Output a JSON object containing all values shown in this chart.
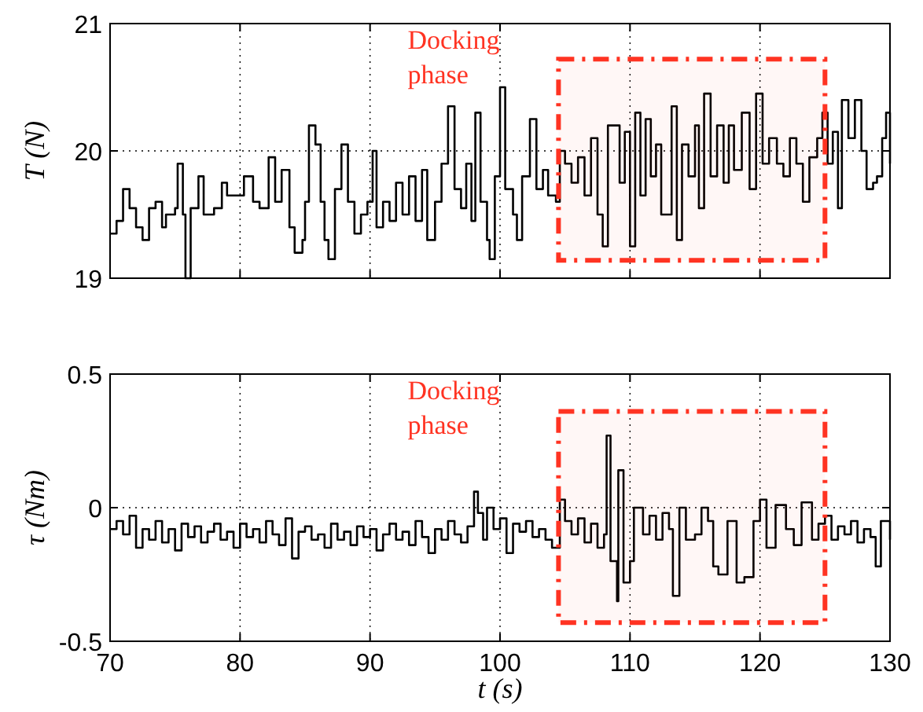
{
  "chart_data": [
    {
      "type": "step",
      "ylabel": "T (N)",
      "xlim": [
        70,
        130
      ],
      "xticks": [
        70,
        80,
        90,
        100,
        110,
        120,
        130
      ],
      "ylim": [
        19,
        21
      ],
      "yticks": [
        19,
        20,
        21
      ],
      "grid": true,
      "tick_labels": "y",
      "bands": [
        {
          "axis": "x",
          "from": 104.5,
          "to": 125,
          "label": "Docking phase",
          "color": "#ff3322"
        }
      ],
      "series": [
        {
          "color": "#000000",
          "x": [
            70,
            70.5,
            71,
            71.5,
            72,
            72.5,
            73,
            73.5,
            74,
            74.3,
            75,
            75.2,
            75.6,
            75.8,
            76.2,
            76.8,
            77.2,
            78,
            78.6,
            79,
            80,
            80.3,
            81,
            81.5,
            82.2,
            82.7,
            83.2,
            83.8,
            84.2,
            84.8,
            85,
            85.3,
            85.8,
            86.2,
            86.5,
            86.8,
            87.3,
            87.8,
            88.3,
            88.8,
            89.3,
            89.8,
            90.2,
            90.5,
            91,
            91.5,
            92,
            92.5,
            93,
            93.5,
            94,
            94.4,
            95,
            95.5,
            96,
            96.5,
            97,
            97.4,
            97.8,
            98.1,
            98.5,
            99,
            99.2,
            99.6,
            100,
            100.4,
            101,
            101.3,
            101.7,
            102.3,
            102.8,
            103.3,
            103.7,
            104.3,
            104.6,
            105,
            105.5,
            106,
            106.5,
            107,
            107.5,
            107.9,
            108.3,
            108.8,
            109.2,
            109.6,
            110,
            110.4,
            110.8,
            111.2,
            111.6,
            112,
            112.4,
            112.9,
            113.2,
            113.6,
            114,
            114.5,
            115,
            115.3,
            115.7,
            116.2,
            116.7,
            117.2,
            117.6,
            118,
            118.6,
            119.2,
            119.7,
            120.2,
            120.7,
            121.3,
            121.8,
            122.3,
            122.8,
            123.3,
            123.8,
            124.4,
            124.8,
            125.2,
            125.6,
            126,
            126.3,
            126.8,
            127.3,
            127.8,
            128.2,
            128.7,
            129,
            129.4,
            129.7,
            130
          ],
          "values": [
            19.35,
            19.45,
            19.7,
            19.55,
            19.4,
            19.3,
            19.55,
            19.6,
            19.4,
            19.5,
            19.55,
            19.9,
            19.5,
            19.0,
            19.55,
            19.8,
            19.5,
            19.55,
            19.75,
            19.65,
            19.65,
            19.8,
            19.6,
            19.55,
            19.95,
            19.6,
            19.85,
            19.4,
            19.2,
            19.3,
            19.6,
            20.2,
            20.05,
            19.6,
            19.3,
            19.15,
            19.7,
            20.05,
            19.6,
            19.35,
            19.5,
            19.6,
            20.0,
            19.4,
            19.6,
            19.45,
            19.75,
            19.5,
            19.8,
            19.45,
            19.85,
            19.3,
            19.6,
            19.9,
            20.35,
            19.7,
            19.55,
            19.9,
            19.45,
            20.3,
            19.6,
            19.3,
            19.15,
            19.8,
            20.5,
            19.7,
            19.5,
            19.3,
            19.8,
            20.25,
            19.7,
            19.85,
            19.65,
            19.6,
            20.0,
            19.9,
            19.75,
            19.95,
            19.65,
            20.1,
            19.5,
            19.25,
            20.2,
            20.2,
            19.75,
            20.15,
            19.25,
            20.3,
            19.65,
            20.25,
            19.8,
            20.05,
            19.5,
            19.5,
            20.35,
            19.3,
            20.05,
            19.8,
            20.2,
            19.55,
            20.45,
            19.8,
            20.2,
            19.75,
            20.2,
            19.85,
            20.3,
            19.7,
            20.45,
            19.9,
            20.1,
            19.9,
            19.8,
            20.1,
            19.9,
            19.6,
            19.95,
            20.1,
            20.3,
            19.9,
            20.15,
            19.55,
            20.4,
            20.1,
            20.4,
            20.0,
            19.7,
            19.75,
            19.8,
            20.1,
            20.3,
            19.9
          ]
        }
      ]
    },
    {
      "type": "step",
      "ylabel": "τ (Nm)",
      "xlabel": "t (s)",
      "xlim": [
        70,
        130
      ],
      "xticks": [
        70,
        80,
        90,
        100,
        110,
        120,
        130
      ],
      "ylim": [
        -0.5,
        0.5
      ],
      "yticks": [
        -0.5,
        0,
        0.5
      ],
      "grid": true,
      "bands": [
        {
          "axis": "x",
          "from": 104.5,
          "to": 125,
          "label": "Docking phase",
          "color": "#ff3322"
        }
      ],
      "series": [
        {
          "color": "#000000",
          "x": [
            70,
            70.5,
            71,
            71.5,
            72,
            72.5,
            73,
            73.5,
            74,
            74.5,
            75,
            75.5,
            76,
            76.5,
            77,
            77.5,
            78,
            78.5,
            79,
            79.5,
            80,
            80.5,
            81,
            81.5,
            82,
            82.5,
            83,
            83.5,
            84,
            84.5,
            85,
            85.5,
            86,
            86.5,
            87,
            87.5,
            88,
            88.5,
            89,
            89.5,
            90,
            90.5,
            91,
            91.5,
            92,
            92.5,
            93,
            93.5,
            94,
            94.5,
            95,
            95.5,
            96,
            96.5,
            97,
            97.5,
            98,
            98.3,
            98.7,
            99,
            99.5,
            100,
            100.5,
            101,
            101.5,
            102,
            102.5,
            103,
            103.5,
            104,
            104.6,
            105,
            105.5,
            106,
            106.5,
            107,
            107.5,
            108,
            108.2,
            108.5,
            109,
            109.1,
            109.5,
            110,
            110.3,
            111,
            111.5,
            112,
            112.5,
            113,
            113.3,
            113.8,
            114.3,
            115,
            115.5,
            116,
            116.4,
            116.8,
            117.5,
            118.2,
            118.8,
            119.5,
            120,
            120.5,
            121.2,
            122,
            122.6,
            123.2,
            124,
            124.5,
            125,
            125.5,
            126,
            126.5,
            127,
            127.5,
            128,
            128.5,
            128.9,
            129.3,
            130
          ],
          "values": [
            -0.08,
            -0.05,
            -0.1,
            -0.03,
            -0.15,
            -0.08,
            -0.12,
            -0.05,
            -0.13,
            -0.08,
            -0.16,
            -0.06,
            -0.11,
            -0.07,
            -0.13,
            -0.09,
            -0.06,
            -0.12,
            -0.09,
            -0.15,
            -0.06,
            -0.11,
            -0.08,
            -0.13,
            -0.05,
            -0.1,
            -0.14,
            -0.04,
            -0.19,
            -0.09,
            -0.07,
            -0.12,
            -0.1,
            -0.15,
            -0.06,
            -0.12,
            -0.09,
            -0.14,
            -0.07,
            -0.11,
            -0.08,
            -0.16,
            -0.1,
            -0.06,
            -0.12,
            -0.09,
            -0.14,
            -0.05,
            -0.11,
            -0.17,
            -0.08,
            -0.12,
            -0.05,
            -0.1,
            -0.13,
            -0.07,
            0.06,
            -0.02,
            -0.12,
            0.0,
            -0.08,
            -0.04,
            -0.17,
            -0.06,
            -0.09,
            -0.05,
            -0.11,
            -0.08,
            -0.12,
            -0.15,
            0.03,
            -0.05,
            -0.1,
            -0.04,
            -0.13,
            -0.06,
            -0.15,
            -0.1,
            0.27,
            -0.2,
            -0.35,
            0.14,
            -0.28,
            -0.2,
            0.0,
            -0.1,
            -0.03,
            -0.12,
            -0.02,
            -0.08,
            -0.33,
            0.0,
            -0.12,
            -0.1,
            0.0,
            -0.05,
            -0.22,
            -0.25,
            -0.05,
            -0.28,
            -0.26,
            -0.05,
            0.03,
            -0.15,
            0.01,
            -0.08,
            -0.14,
            0.02,
            -0.12,
            -0.06,
            -0.03,
            -0.12,
            -0.07,
            -0.1,
            -0.05,
            -0.13,
            -0.08,
            -0.11,
            -0.22,
            -0.05,
            -0.12
          ]
        }
      ]
    }
  ]
}
